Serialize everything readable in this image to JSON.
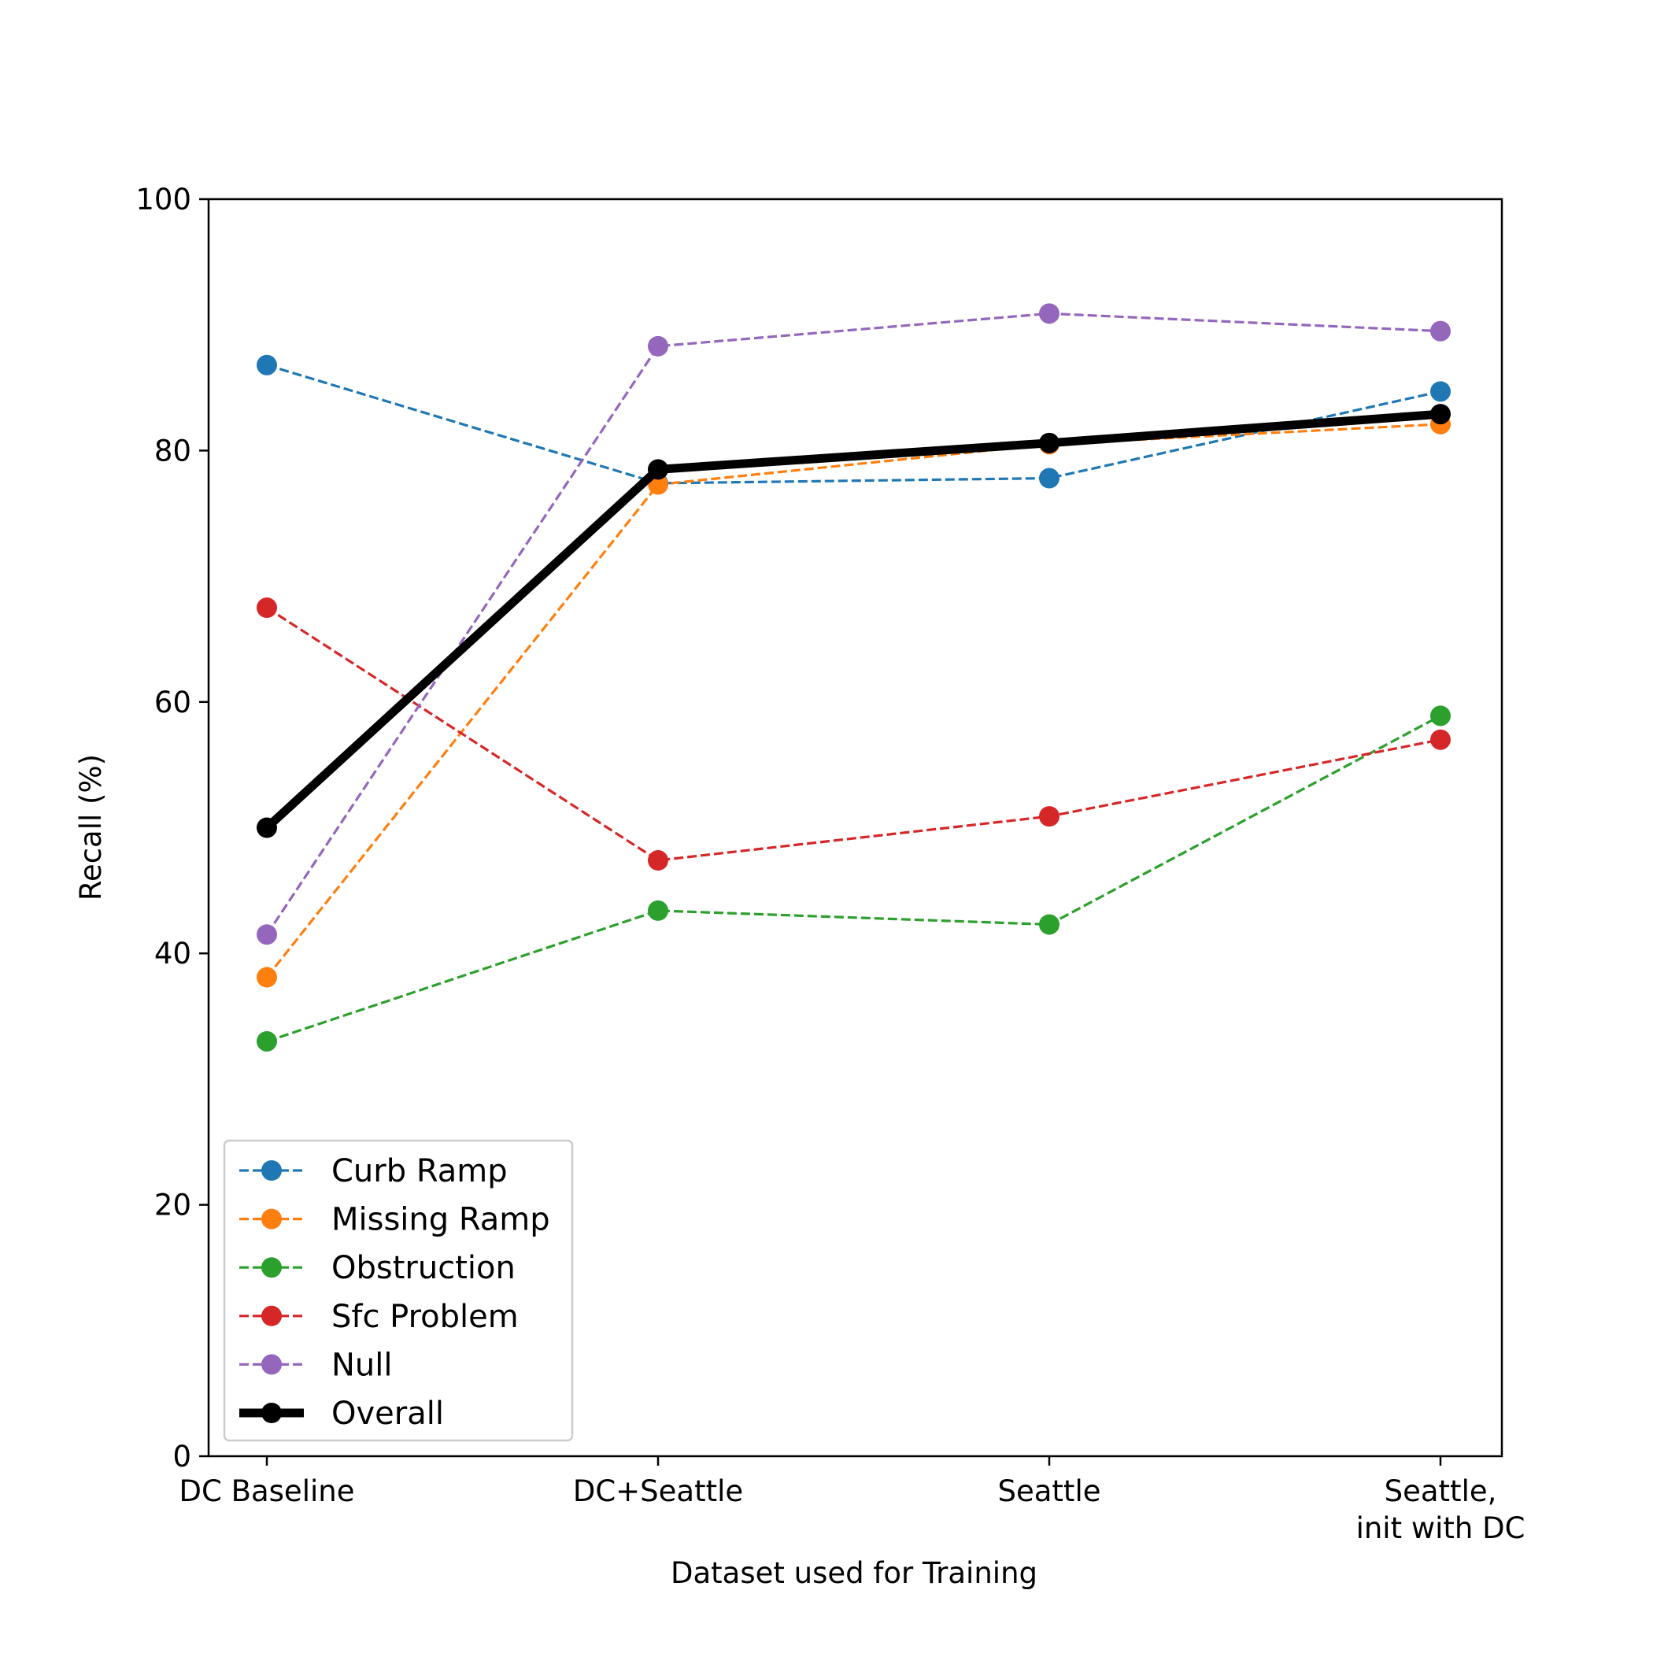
{
  "chart_data": {
    "type": "line",
    "title": "",
    "xlabel": "Dataset used for Training",
    "ylabel": "Recall (%)",
    "categories": [
      [
        "DC Baseline"
      ],
      [
        "DC+Seattle"
      ],
      [
        "Seattle"
      ],
      [
        "Seattle,",
        "init with DC"
      ]
    ],
    "ylim": [
      0,
      100
    ],
    "yticks": [
      0,
      20,
      40,
      60,
      80,
      100
    ],
    "grid": false,
    "legend_position": "lower-left",
    "series": [
      {
        "name": "Curb Ramp",
        "color": "#1f77b4",
        "style": "dashed",
        "values": [
          86.8,
          77.4,
          77.8,
          84.7
        ]
      },
      {
        "name": "Missing Ramp",
        "color": "#ff7f0e",
        "style": "dashed",
        "values": [
          38.1,
          77.3,
          80.5,
          82.1
        ]
      },
      {
        "name": "Obstruction",
        "color": "#2ca02c",
        "style": "dashed",
        "values": [
          33.0,
          43.4,
          42.3,
          58.9
        ]
      },
      {
        "name": "Sfc Problem",
        "color": "#d62728",
        "style": "dashed",
        "values": [
          67.5,
          47.4,
          50.9,
          57.0
        ]
      },
      {
        "name": "Null",
        "color": "#9467bd",
        "style": "dashed",
        "values": [
          41.5,
          88.3,
          90.9,
          89.5
        ]
      },
      {
        "name": "Overall",
        "color": "#000000",
        "style": "solid",
        "values": [
          50.0,
          78.5,
          80.6,
          82.9
        ]
      }
    ]
  }
}
